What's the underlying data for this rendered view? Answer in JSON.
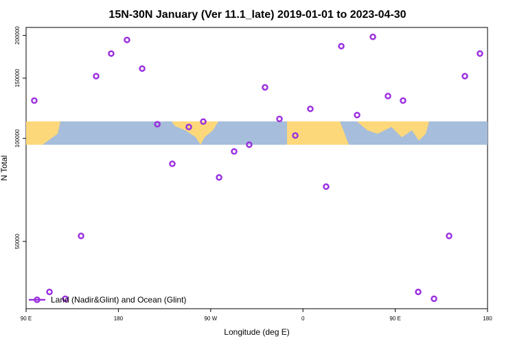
{
  "chart_data": {
    "type": "scatter",
    "title": "15N-30N January (Ver 11.1_late)   2019-01-01 to 2023-04-30",
    "x_label": "Longitude (deg E)",
    "y_label": "N Total",
    "log_y": true,
    "legend_position": "lower left",
    "xlim": [
      90,
      540
    ],
    "ylim": [
      31800,
      211000
    ],
    "xticks": [
      {
        "value": 90,
        "label": "90 E"
      },
      {
        "value": 180,
        "label": "180"
      },
      {
        "value": 270,
        "label": "90 W"
      },
      {
        "value": 360,
        "label": "0"
      },
      {
        "value": 450,
        "label": "90 E"
      },
      {
        "value": 540,
        "label": "180"
      }
    ],
    "yticks": [
      50000,
      100000,
      150000,
      200000
    ],
    "series": [
      {
        "name": "Land (Nadir&Glint) and Ocean (Glint)",
        "color": "#9b30e0",
        "x": [
          98,
          112.8,
          128.2,
          143.6,
          158.3,
          173,
          188.4,
          203.2,
          218,
          232.6,
          248.7,
          262.8,
          278.2,
          292.9,
          307.6,
          323,
          337.1,
          352.5,
          367.2,
          382.6,
          397.4,
          412.8,
          428.2,
          442.9,
          457.6,
          472.4,
          487.8,
          502.5,
          517.9,
          532.6
        ],
        "values": [
          129000,
          35600,
          34000,
          51900,
          152000,
          177000,
          194000,
          160000,
          110000,
          84300,
          108000,
          112000,
          76900,
          91600,
          95900,
          141000,
          114000,
          102000,
          122000,
          72300,
          186000,
          117000,
          198000,
          133000,
          129000,
          35600,
          34000,
          51900,
          152000,
          177000
        ]
      }
    ]
  }
}
